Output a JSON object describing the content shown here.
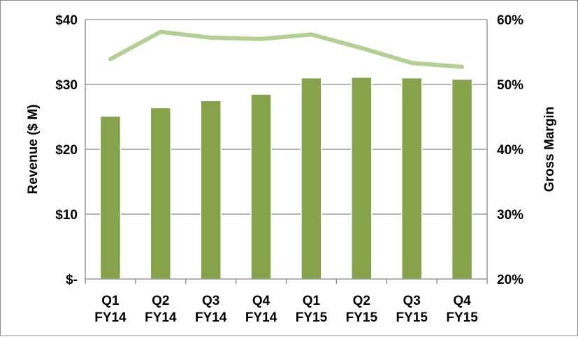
{
  "chart_data": {
    "type": "bar+line",
    "categories": [
      [
        "Q1",
        "FY14"
      ],
      [
        "Q2",
        "FY14"
      ],
      [
        "Q3",
        "FY14"
      ],
      [
        "Q4",
        "FY14"
      ],
      [
        "Q1",
        "FY15"
      ],
      [
        "Q2",
        "FY15"
      ],
      [
        "Q3",
        "FY15"
      ],
      [
        "Q4",
        "FY15"
      ]
    ],
    "series": [
      {
        "type": "bar",
        "axis": "left",
        "color": "#86a34c",
        "values": [
          25.1,
          26.4,
          27.5,
          28.5,
          31.0,
          31.1,
          31.0,
          30.8
        ]
      },
      {
        "type": "line",
        "axis": "right",
        "color": "#b3cf92",
        "values": [
          0.539,
          0.581,
          0.572,
          0.57,
          0.577,
          0.556,
          0.533,
          0.527
        ]
      }
    ],
    "ylabel": "Revenue ($ M)",
    "y2label": "Gross Margin",
    "ylim": [
      0,
      40
    ],
    "y2lim": [
      0.2,
      0.6
    ],
    "yticks": [
      "$-",
      "$10",
      "$20",
      "$30",
      "$40"
    ],
    "y2ticks": [
      "20%",
      "30%",
      "40%",
      "50%",
      "60%"
    ],
    "grid": true,
    "gridline_color": "#868686",
    "legend": "none"
  }
}
